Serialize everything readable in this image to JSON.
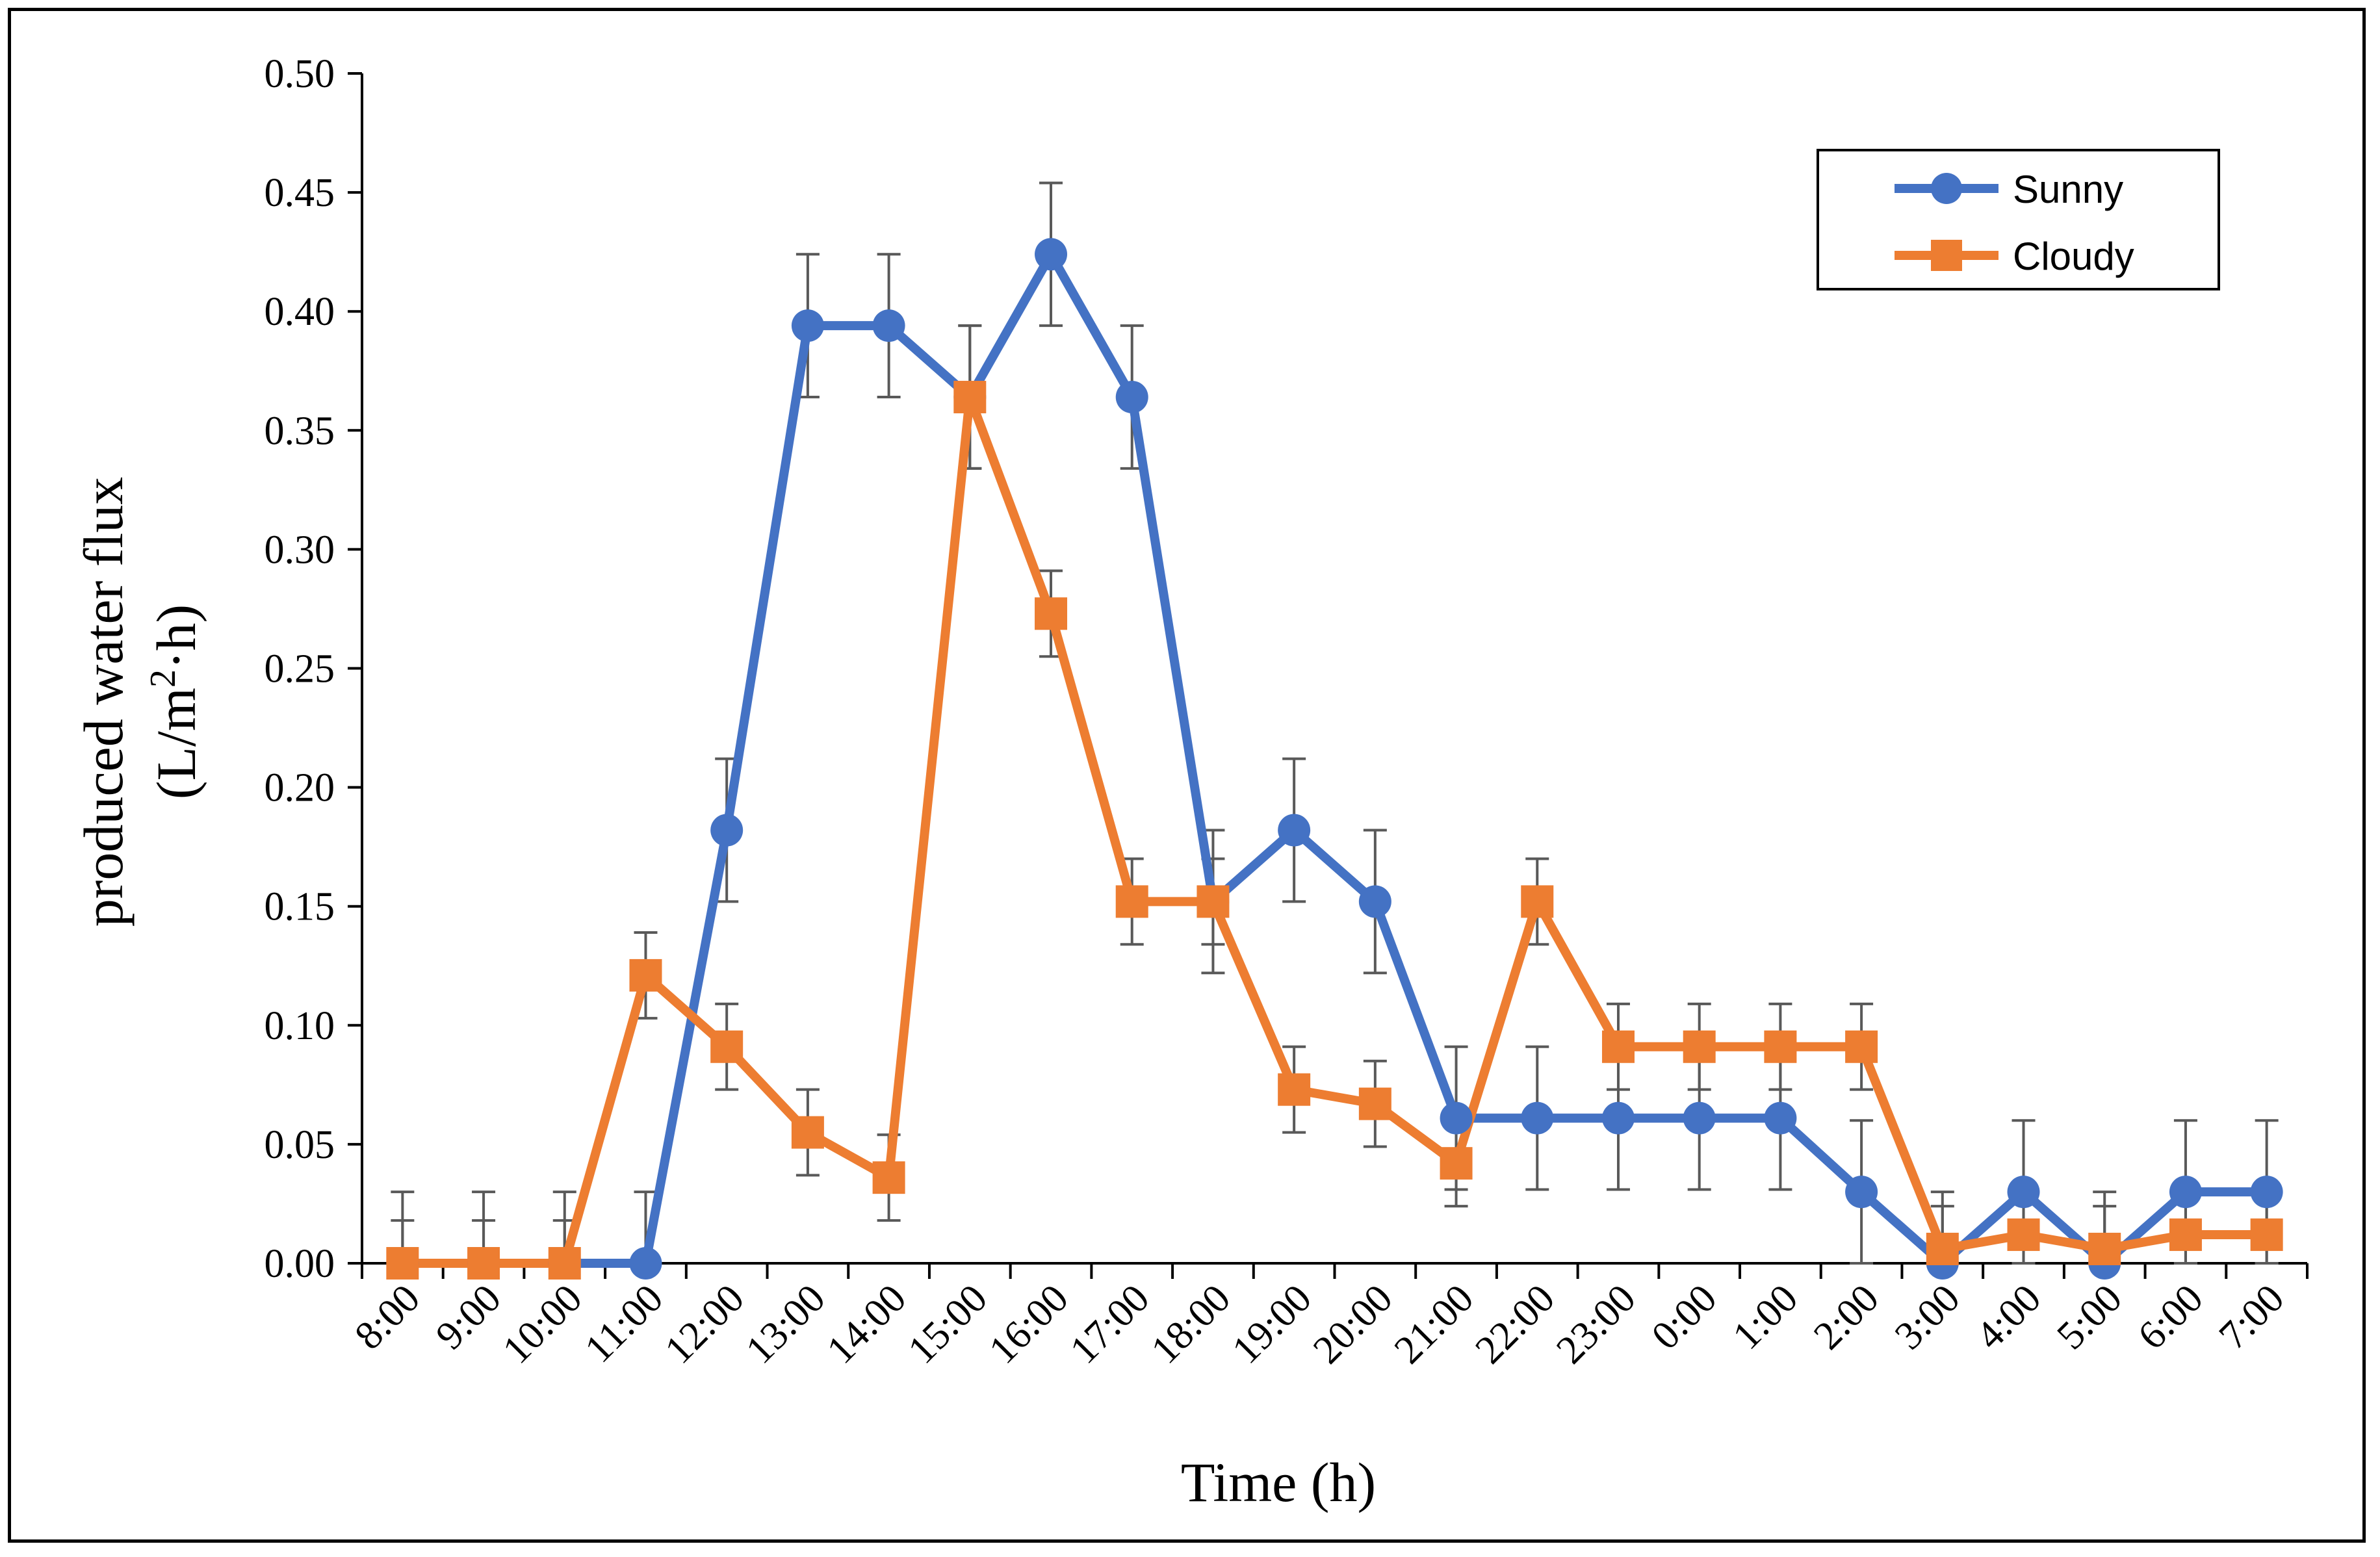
{
  "chart_data": {
    "type": "line",
    "xlabel": "Time (h)",
    "ylabel_line1": "produced water flux",
    "ylabel_line2_prefix": "(L/m",
    "ylabel_sup": "2",
    "ylabel_line2_suffix": "·h)",
    "categories": [
      "8:00",
      "9:00",
      "10:00",
      "11:00",
      "12:00",
      "13:00",
      "14:00",
      "15:00",
      "16:00",
      "17:00",
      "18:00",
      "19:00",
      "20:00",
      "21:00",
      "22:00",
      "23:00",
      "0:00",
      "1:00",
      "2:00",
      "3:00",
      "4:00",
      "5:00",
      "6:00",
      "7:00"
    ],
    "ylim": [
      0,
      0.5
    ],
    "yticks": [
      "0.00",
      "0.05",
      "0.10",
      "0.15",
      "0.20",
      "0.25",
      "0.30",
      "0.35",
      "0.40",
      "0.45",
      "0.50"
    ],
    "legend_position": "top-right",
    "grid": false,
    "series": [
      {
        "name": "Sunny",
        "color": "#4472C4",
        "marker": "circle",
        "values": [
          0,
          0,
          0,
          0,
          0.182,
          0.394,
          0.394,
          0.364,
          0.424,
          0.364,
          0.152,
          0.182,
          0.152,
          0.061,
          0.061,
          0.061,
          0.061,
          0.061,
          0.03,
          0,
          0.03,
          0,
          0.03,
          0.03
        ],
        "errors": [
          0.03,
          0.03,
          0.03,
          0.03,
          0.03,
          0.03,
          0.03,
          0.03,
          0.03,
          0.03,
          0.03,
          0.03,
          0.03,
          0.03,
          0.03,
          0.03,
          0.03,
          0.03,
          0.03,
          0.03,
          0.03,
          0.03,
          0.03,
          0.03
        ]
      },
      {
        "name": "Cloudy",
        "color": "#ED7D31",
        "marker": "square",
        "values": [
          0,
          0,
          0,
          0.121,
          0.091,
          0.055,
          0.036,
          0.364,
          0.273,
          0.152,
          0.152,
          0.073,
          0.067,
          0.042,
          0.152,
          0.091,
          0.091,
          0.091,
          0.091,
          0.006,
          0.012,
          0.006,
          0.012,
          0.012
        ],
        "errors": [
          0.018,
          0.018,
          0.018,
          0.018,
          0.018,
          0.018,
          0.018,
          0.03,
          0.018,
          0.018,
          0.018,
          0.018,
          0.018,
          0.018,
          0.018,
          0.018,
          0.018,
          0.018,
          0.018,
          0.018,
          0.018,
          0.018,
          0.018,
          0.018
        ]
      }
    ]
  }
}
